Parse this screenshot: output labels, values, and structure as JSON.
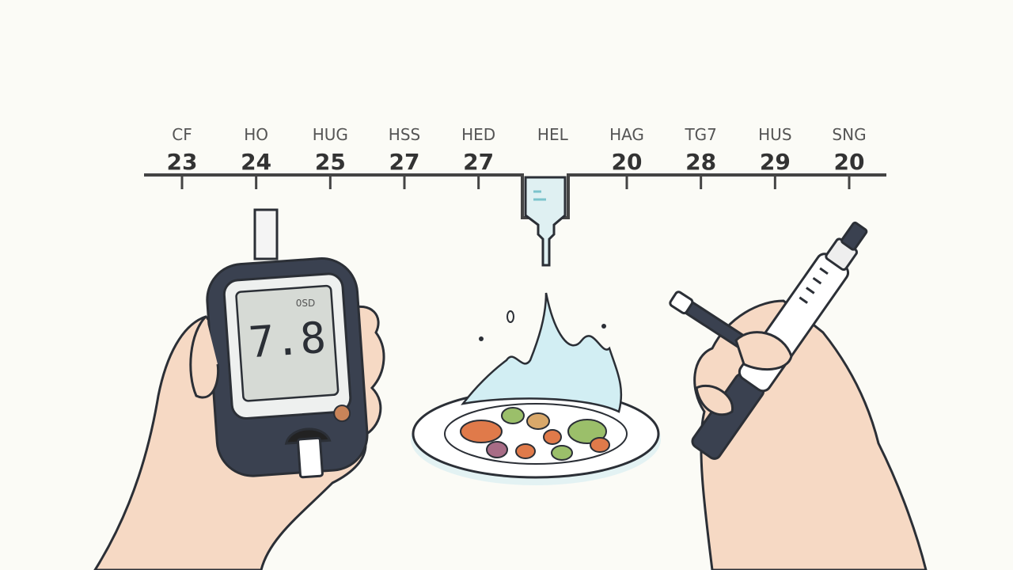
{
  "timeline": {
    "items": [
      {
        "label": "CF",
        "day": "23"
      },
      {
        "label": "HO",
        "day": "24"
      },
      {
        "label": "HUG",
        "day": "25"
      },
      {
        "label": "HSS",
        "day": "27"
      },
      {
        "label": "HED",
        "day": "27"
      },
      {
        "label": "HEL",
        "day": null
      },
      {
        "label": "HAG",
        "day": "20"
      },
      {
        "label": "TG7",
        "day": "28"
      },
      {
        "label": "HUS",
        "day": "29"
      },
      {
        "label": "SNG",
        "day": "20"
      }
    ]
  },
  "meter": {
    "unit": "0SD",
    "reading": "7.8"
  }
}
